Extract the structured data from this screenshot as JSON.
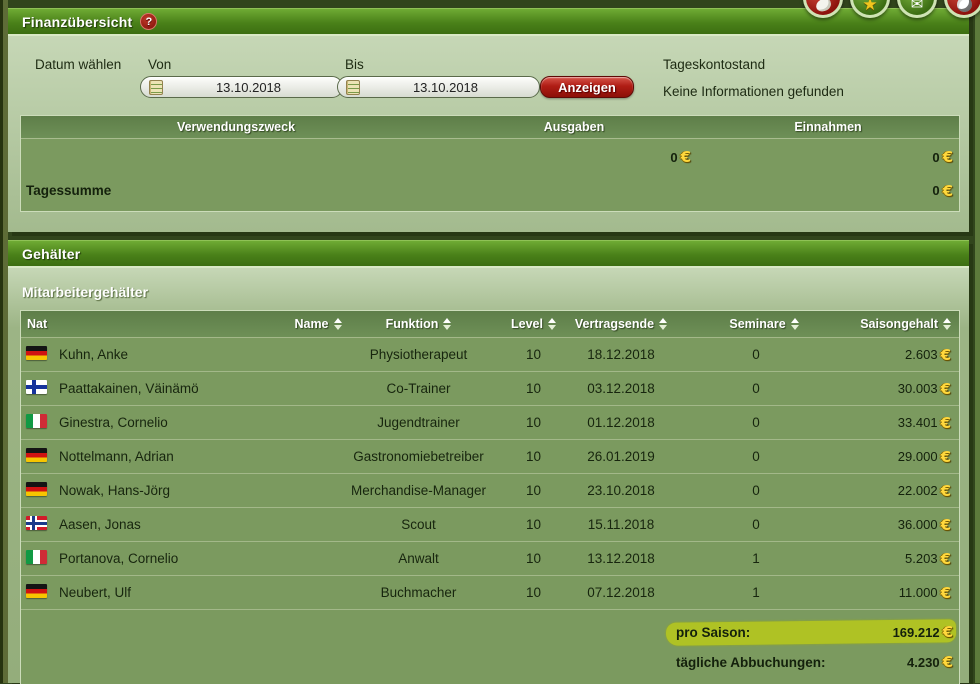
{
  "currency": "€",
  "icons": {
    "help": "?",
    "star": "★",
    "mail": "✉"
  },
  "finanz": {
    "title": "Finanzübersicht",
    "datum_label": "Datum wählen",
    "von_label": "Von",
    "bis_label": "Bis",
    "von_value": "13.10.2018",
    "bis_value": "13.10.2018",
    "anzeigen_label": "Anzeigen",
    "tageskontostand_label": "Tageskontostand",
    "no_info_text": "Keine Informationen gefunden",
    "table": {
      "headers": [
        "Verwendungszweck",
        "Ausgaben",
        "Einnahmen"
      ],
      "ausgaben_total": "0",
      "einnahmen_total": "0",
      "tagessumme_label": "Tagessumme",
      "tagessumme_value": "0"
    }
  },
  "gehaelter": {
    "title": "Gehälter",
    "subtitle": "Mitarbeitergehälter",
    "columns": [
      "Nat",
      "Name",
      "Funktion",
      "Level",
      "Vertragsende",
      "Seminare",
      "Saisongehalt"
    ],
    "rows": [
      {
        "nat": "de",
        "name": "Kuhn, Anke",
        "funktion": "Physiotherapeut",
        "level": "10",
        "vertragsende": "18.12.2018",
        "seminare": "0",
        "gehalt": "2.603"
      },
      {
        "nat": "fi",
        "name": "Paattakainen, Väinämö",
        "funktion": "Co-Trainer",
        "level": "10",
        "vertragsende": "03.12.2018",
        "seminare": "0",
        "gehalt": "30.003"
      },
      {
        "nat": "it",
        "name": "Ginestra, Cornelio",
        "funktion": "Jugendtrainer",
        "level": "10",
        "vertragsende": "01.12.2018",
        "seminare": "0",
        "gehalt": "33.401"
      },
      {
        "nat": "de",
        "name": "Nottelmann, Adrian",
        "funktion": "Gastronomiebetreiber",
        "level": "10",
        "vertragsende": "26.01.2019",
        "seminare": "0",
        "gehalt": "29.000"
      },
      {
        "nat": "de",
        "name": "Nowak, Hans-Jörg",
        "funktion": "Merchandise-Manager",
        "level": "10",
        "vertragsende": "23.10.2018",
        "seminare": "0",
        "gehalt": "22.002"
      },
      {
        "nat": "no",
        "name": "Aasen, Jonas",
        "funktion": "Scout",
        "level": "10",
        "vertragsende": "15.11.2018",
        "seminare": "0",
        "gehalt": "36.000"
      },
      {
        "nat": "it",
        "name": "Portanova, Cornelio",
        "funktion": "Anwalt",
        "level": "10",
        "vertragsende": "13.12.2018",
        "seminare": "1",
        "gehalt": "5.203"
      },
      {
        "nat": "de",
        "name": "Neubert, Ulf",
        "funktion": "Buchmacher",
        "level": "10",
        "vertragsende": "07.12.2018",
        "seminare": "1",
        "gehalt": "11.000"
      }
    ],
    "pro_saison_label": "pro Saison:",
    "pro_saison_value": "169.212",
    "abbuchungen_label": "tägliche Abbuchungen:",
    "abbuchungen_value": "4.230"
  },
  "colors": {
    "header_green": "#4a8119",
    "panel_sage": "#b5c9a4",
    "table_green": "#7b9a5f",
    "button_red": "#b01d15",
    "euro_gold": "#ffd83d",
    "highlight_marker": "#b4c620"
  }
}
